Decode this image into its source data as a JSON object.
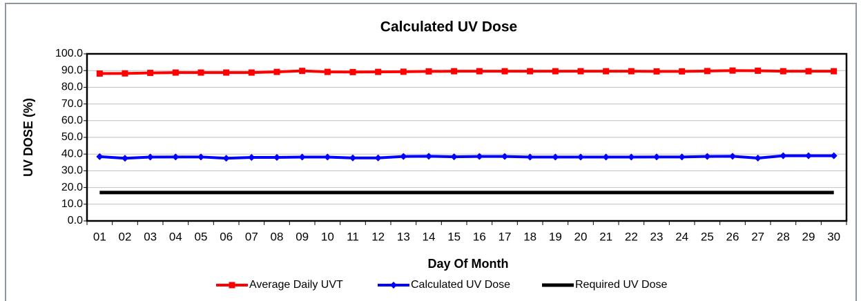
{
  "chart_data": {
    "type": "line",
    "title": "Calculated UV Dose",
    "x_label": "Day Of Month",
    "y_label": "UV DOSE (%)",
    "categories": [
      "01",
      "02",
      "03",
      "04",
      "05",
      "06",
      "07",
      "08",
      "09",
      "10",
      "11",
      "12",
      "13",
      "14",
      "15",
      "16",
      "17",
      "18",
      "19",
      "20",
      "21",
      "22",
      "23",
      "24",
      "25",
      "26",
      "27",
      "28",
      "29",
      "30"
    ],
    "series": [
      {
        "name": "Average Daily UVT",
        "color": "#ff0000",
        "marker": "square",
        "values": [
          88.2,
          88.3,
          88.6,
          88.8,
          88.8,
          88.8,
          88.8,
          89.2,
          89.8,
          89.2,
          89.1,
          89.2,
          89.3,
          89.5,
          89.6,
          89.6,
          89.6,
          89.6,
          89.6,
          89.6,
          89.6,
          89.6,
          89.5,
          89.5,
          89.7,
          90.0,
          89.9,
          89.6,
          89.6,
          89.6
        ]
      },
      {
        "name": "Calculated UV Dose",
        "color": "#0000ff",
        "marker": "diamond",
        "values": [
          38.5,
          37.5,
          38.2,
          38.3,
          38.3,
          37.5,
          38.0,
          38.0,
          38.2,
          38.2,
          37.7,
          37.7,
          38.6,
          38.7,
          38.4,
          38.6,
          38.6,
          38.2,
          38.2,
          38.2,
          38.2,
          38.2,
          38.3,
          38.3,
          38.6,
          38.7,
          37.6,
          39.0,
          39.0,
          39.0
        ]
      },
      {
        "name": "Required UV Dose",
        "color": "#000000",
        "marker": "none",
        "values": [
          17,
          17,
          17,
          17,
          17,
          17,
          17,
          17,
          17,
          17,
          17,
          17,
          17,
          17,
          17,
          17,
          17,
          17,
          17,
          17,
          17,
          17,
          17,
          17,
          17,
          17,
          17,
          17,
          17,
          17
        ]
      }
    ],
    "ylim": [
      0,
      100
    ],
    "yticks": [
      {
        "value": 0,
        "label": "0.0"
      },
      {
        "value": 10,
        "label": "10.0"
      },
      {
        "value": 20,
        "label": "20.0"
      },
      {
        "value": 30,
        "label": "30.0"
      },
      {
        "value": 40,
        "label": "40.0"
      },
      {
        "value": 50,
        "label": "50.0"
      },
      {
        "value": 60,
        "label": "60.0"
      },
      {
        "value": 70,
        "label": "70.0"
      },
      {
        "value": 80,
        "label": "80.0"
      },
      {
        "value": 90,
        "label": "90.0"
      },
      {
        "value": 100,
        "label": "100.0"
      }
    ],
    "grid": true,
    "legend": "bottom"
  }
}
